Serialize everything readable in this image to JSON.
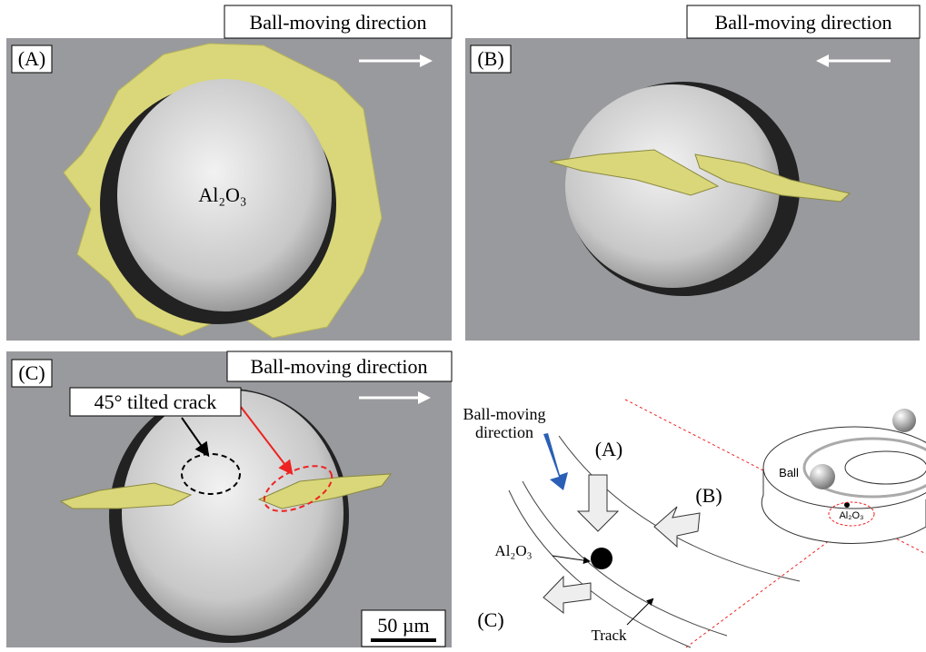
{
  "panels": [
    {
      "label": "(A)",
      "direction_label": "Ball-moving direction",
      "annotation": "Al₂O₃"
    },
    {
      "label": "(B)",
      "direction_label": "Ball-moving direction"
    },
    {
      "label": "(C)",
      "direction_label": "Ball-moving direction",
      "annotation": "45° tilted crack",
      "scale_bar": "50 µm"
    }
  ],
  "schematic": {
    "direction_label": [
      "Ball-moving",
      "direction"
    ],
    "views": [
      "(A)",
      "(B)",
      "(C)"
    ],
    "inclusion": "Al₂O₃",
    "track": "Track",
    "ball": "Ball",
    "ring_inclusion": "Al₂O₃"
  }
}
